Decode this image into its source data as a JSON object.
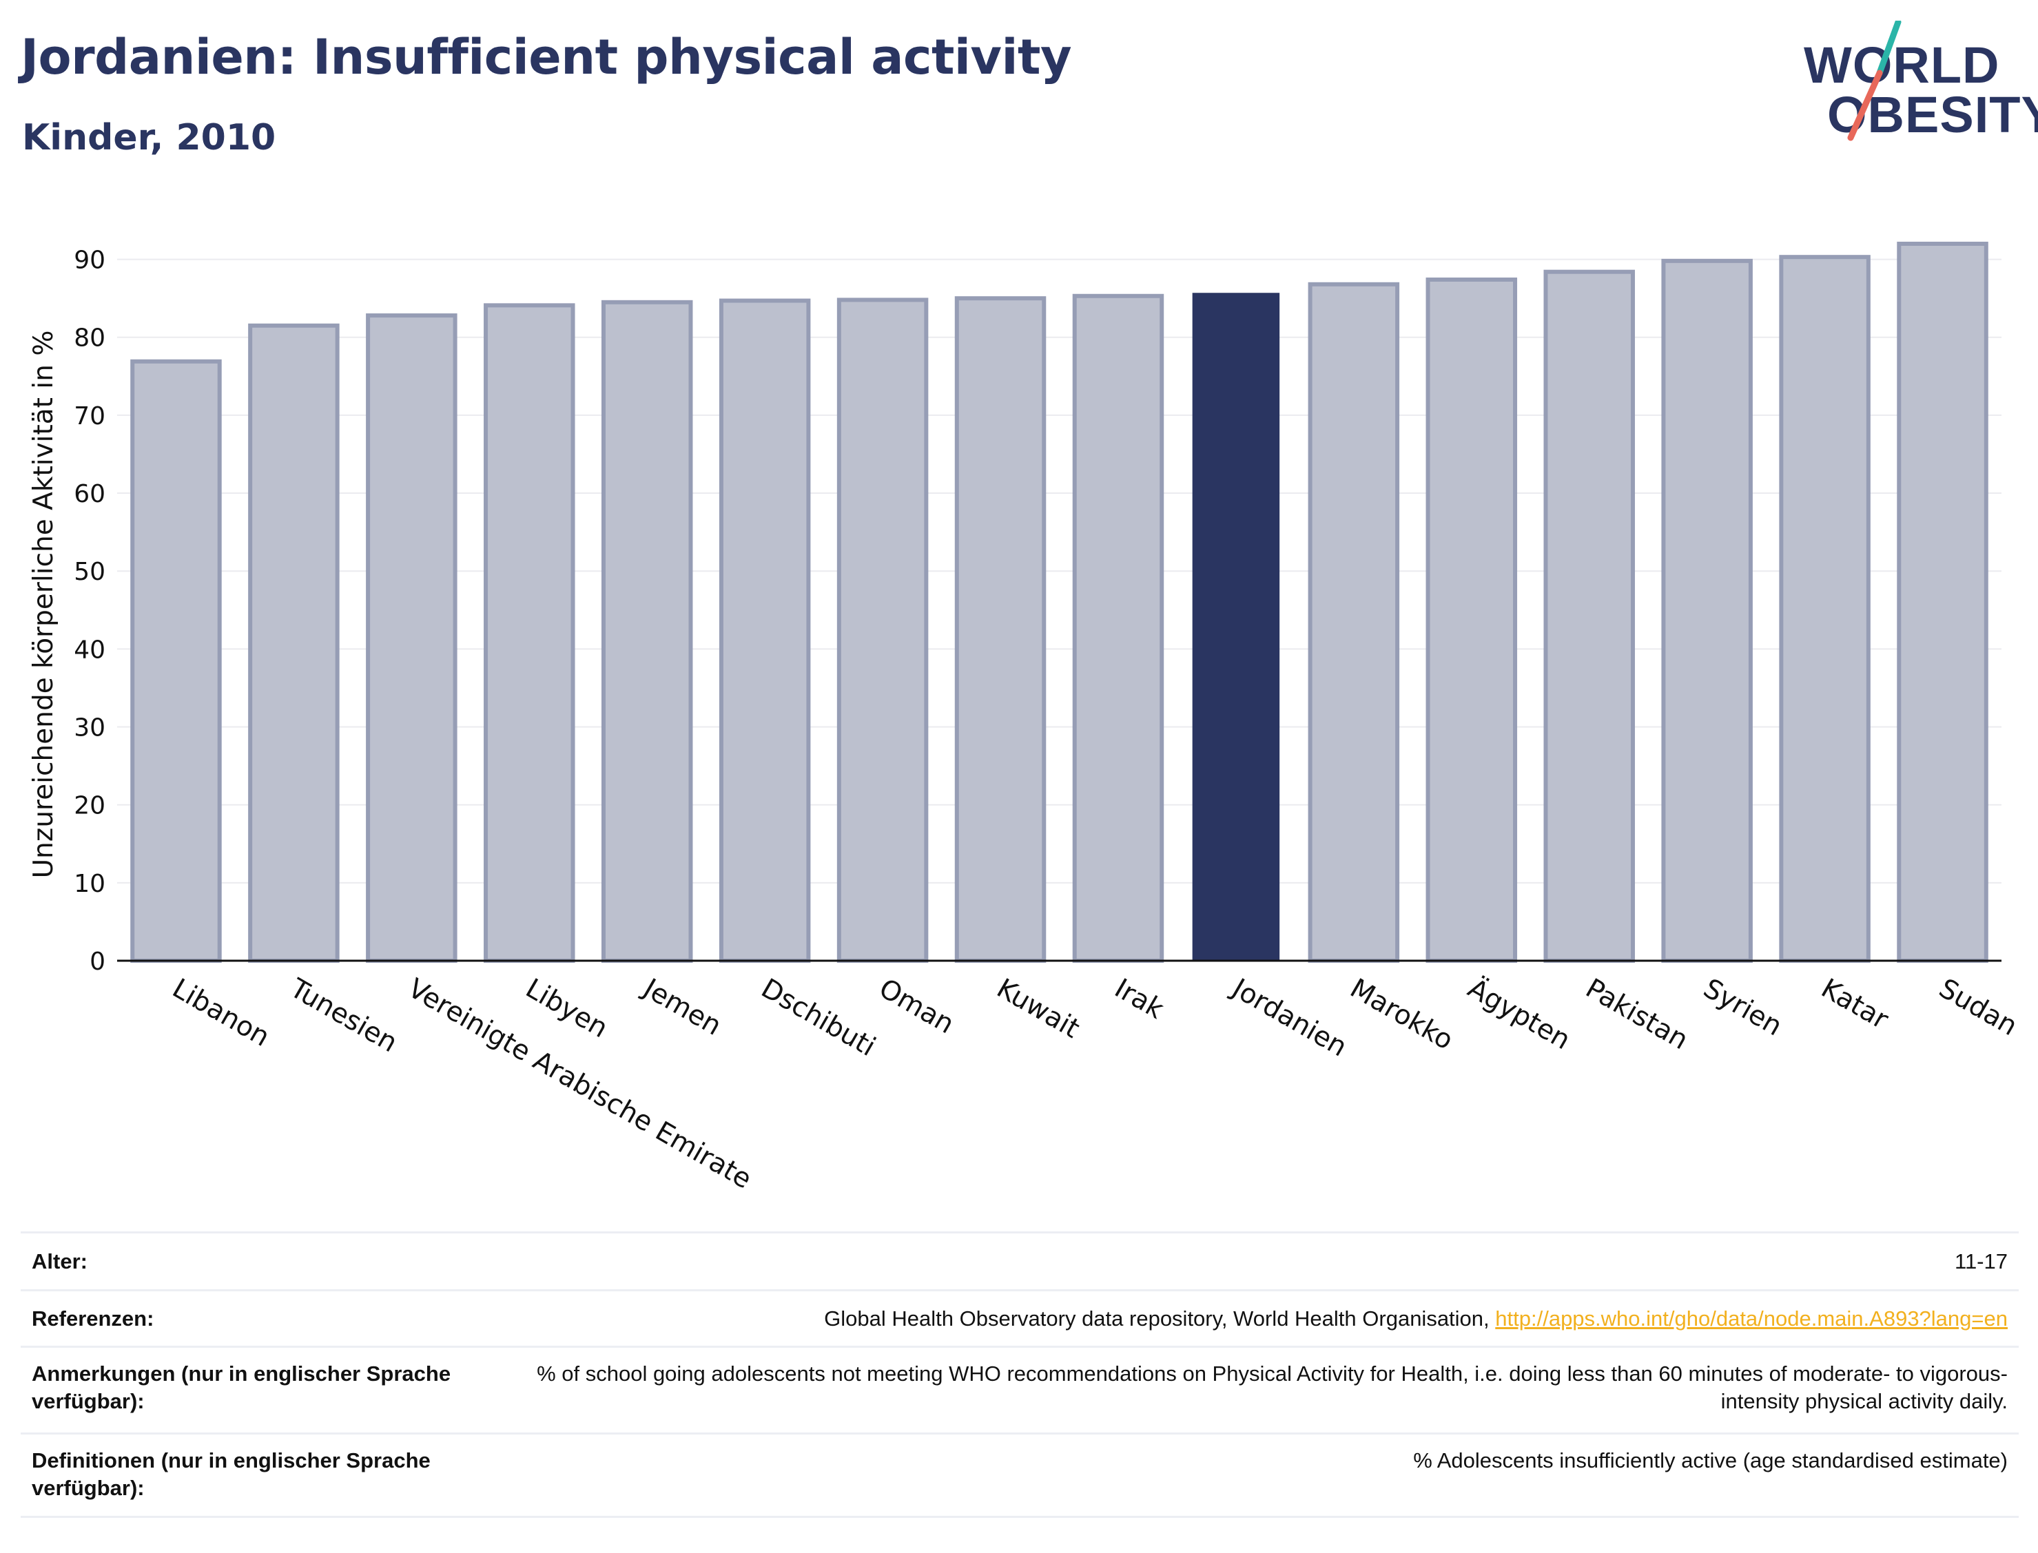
{
  "header": {
    "title": "Jordanien: Insufficient physical activity",
    "subtitle": "Kinder, 2010"
  },
  "logo": {
    "line1": "WORLD",
    "line2": "OBESITY"
  },
  "colors": {
    "highlight_bar": "#2a3561",
    "bar_fill": "#bcc0ce",
    "bar_stroke": "#969db5",
    "link": "#f2b01e",
    "logo_slash_top": "#2bb5a8",
    "logo_slash_bottom": "#e8685a"
  },
  "chart_data": {
    "type": "bar",
    "ylabel": "Unzureichende körperliche Aktivität in %",
    "ylim": [
      0,
      95
    ],
    "yticks": [
      0,
      10,
      20,
      30,
      40,
      50,
      60,
      70,
      80,
      90
    ],
    "grid": true,
    "highlight": "Jordanien",
    "categories": [
      "Libanon",
      "Tunesien",
      "Vereinigte Arabische Emirate",
      "Libyen",
      "Jemen",
      "Dschibuti",
      "Oman",
      "Kuwait",
      "Irak",
      "Jordanien",
      "Marokko",
      "Ägypten",
      "Pakistan",
      "Syrien",
      "Katar",
      "Sudan"
    ],
    "values": [
      76.9,
      81.5,
      82.8,
      84.1,
      84.5,
      84.7,
      84.8,
      85.0,
      85.3,
      85.7,
      86.8,
      87.4,
      88.4,
      89.8,
      90.3,
      92.0
    ]
  },
  "meta": [
    {
      "label": "Alter:",
      "value": "11-17"
    },
    {
      "label": "Referenzen:",
      "value": "Global Health Observatory data repository, World Health Organisation,",
      "link": "http://apps.who.int/gho/data/node.main.A893?lang=en"
    },
    {
      "label": "Anmerkungen (nur in englischer Sprache verfügbar):",
      "value": "% of school going adolescents not meeting WHO recommendations on Physical Activity for Health, i.e. doing less than 60 minutes of moderate- to vigorous-intensity physical activity daily."
    },
    {
      "label": "Definitionen (nur in englischer Sprache verfügbar):",
      "value": "% Adolescents insufficiently active (age standardised estimate)"
    }
  ]
}
